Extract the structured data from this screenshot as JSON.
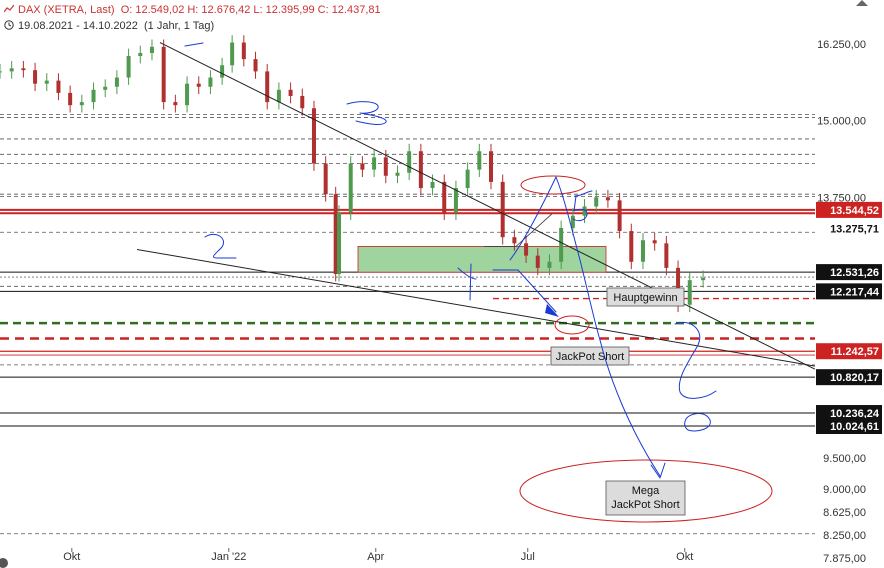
{
  "header": {
    "instrument": "DAX (XETRA, Last)",
    "ohlc": "O: 12.549,02  H: 12.676,42  L: 12.395,99  C: 12.437,81",
    "range": "19.08.2021 - 14.10.2022",
    "period": "(1 Jahr, 1 Tag)"
  },
  "colors": {
    "candle": "#4f9a4f",
    "red_line": "#cc2222",
    "dashed_red": "#cc2222",
    "dashed_green": "#2e6e1e",
    "grid_dash": "#555555",
    "green_box": "#9fd49f",
    "blue_ink": "#1a3ad6",
    "trendline": "#222222",
    "red_label_bg": "#cc2222"
  },
  "chart_data": {
    "type": "candlestick",
    "x_ticks": [
      "Okt",
      "Jan '22",
      "Apr",
      "Jul",
      "Okt"
    ],
    "y_ticks": [
      "16.250,00",
      "15.000,00",
      "13.750,00",
      "9.500,00",
      "9.000,00",
      "8.625,00",
      "8.250,00",
      "7.875,00"
    ],
    "ylim": [
      7875,
      16800
    ],
    "price_labels": [
      {
        "text": "13.544,52",
        "value": 13544.52,
        "style": "red"
      },
      {
        "text": "13.275,71",
        "value": 13275.71,
        "style": "plain"
      },
      {
        "text": "12.531,26",
        "value": 12531.26,
        "style": "dark"
      },
      {
        "text": "12.217,44",
        "value": 12217.44,
        "style": "dark"
      },
      {
        "text": "11.242,57",
        "value": 11242.57,
        "style": "red"
      },
      {
        "text": "10.820,17",
        "value": 10820.17,
        "style": "dark"
      },
      {
        "text": "10.236,24",
        "value": 10236.24,
        "style": "dark"
      },
      {
        "text": "10.024,61",
        "value": 10024.61,
        "style": "dark"
      }
    ],
    "annotations": [
      "Hauptgewinn",
      "JackPot Short",
      "Mega JackPot Short"
    ],
    "handwritten": [
      "1",
      "2",
      "3",
      "4",
      "5"
    ],
    "candles": [
      {
        "date": "2021-08-19",
        "close": 15800
      },
      {
        "date": "2021-08-26",
        "close": 15850
      },
      {
        "date": "2021-09-02",
        "close": 15820
      },
      {
        "date": "2021-09-09",
        "close": 15600
      },
      {
        "date": "2021-09-16",
        "close": 15650
      },
      {
        "date": "2021-09-23",
        "close": 15450
      },
      {
        "date": "2021-09-30",
        "close": 15250
      },
      {
        "date": "2021-10-07",
        "close": 15300
      },
      {
        "date": "2021-10-14",
        "close": 15500
      },
      {
        "date": "2021-10-21",
        "close": 15550
      },
      {
        "date": "2021-10-28",
        "close": 15700
      },
      {
        "date": "2021-11-04",
        "close": 16050
      },
      {
        "date": "2021-11-11",
        "close": 16100
      },
      {
        "date": "2021-11-18",
        "close": 16200
      },
      {
        "date": "2021-11-25",
        "close": 15300
      },
      {
        "date": "2021-12-02",
        "close": 15250
      },
      {
        "date": "2021-12-09",
        "close": 15600
      },
      {
        "date": "2021-12-16",
        "close": 15550
      },
      {
        "date": "2021-12-23",
        "close": 15700
      },
      {
        "date": "2021-12-30",
        "close": 15900
      },
      {
        "date": "2022-01-05",
        "close": 16270
      },
      {
        "date": "2022-01-12",
        "close": 16000
      },
      {
        "date": "2022-01-19",
        "close": 15800
      },
      {
        "date": "2022-01-26",
        "close": 15300
      },
      {
        "date": "2022-02-02",
        "close": 15500
      },
      {
        "date": "2022-02-09",
        "close": 15400
      },
      {
        "date": "2022-02-16",
        "close": 15200
      },
      {
        "date": "2022-02-23",
        "close": 14300
      },
      {
        "date": "2022-03-02",
        "close": 13800
      },
      {
        "date": "2022-03-08",
        "close": 12500
      },
      {
        "date": "2022-03-10",
        "close": 13500
      },
      {
        "date": "2022-03-17",
        "close": 14300
      },
      {
        "date": "2022-03-24",
        "close": 14200
      },
      {
        "date": "2022-03-31",
        "close": 14400
      },
      {
        "date": "2022-04-07",
        "close": 14100
      },
      {
        "date": "2022-04-14",
        "close": 14150
      },
      {
        "date": "2022-04-21",
        "close": 14500
      },
      {
        "date": "2022-04-28",
        "close": 13900
      },
      {
        "date": "2022-05-05",
        "close": 14000
      },
      {
        "date": "2022-05-12",
        "close": 13500
      },
      {
        "date": "2022-05-19",
        "close": 13900
      },
      {
        "date": "2022-05-26",
        "close": 14200
      },
      {
        "date": "2022-06-02",
        "close": 14500
      },
      {
        "date": "2022-06-09",
        "close": 14000
      },
      {
        "date": "2022-06-16",
        "close": 13100
      },
      {
        "date": "2022-06-23",
        "close": 13000
      },
      {
        "date": "2022-06-30",
        "close": 12800
      },
      {
        "date": "2022-07-07",
        "close": 12600
      },
      {
        "date": "2022-07-14",
        "close": 12700
      },
      {
        "date": "2022-07-21",
        "close": 13250
      },
      {
        "date": "2022-07-28",
        "close": 13450
      },
      {
        "date": "2022-08-04",
        "close": 13600
      },
      {
        "date": "2022-08-11",
        "close": 13750
      },
      {
        "date": "2022-08-18",
        "close": 13700
      },
      {
        "date": "2022-08-25",
        "close": 13200
      },
      {
        "date": "2022-09-01",
        "close": 12700
      },
      {
        "date": "2022-09-08",
        "close": 13050
      },
      {
        "date": "2022-09-15",
        "close": 13000
      },
      {
        "date": "2022-09-22",
        "close": 12600
      },
      {
        "date": "2022-09-29",
        "close": 12000
      },
      {
        "date": "2022-10-06",
        "close": 12400
      },
      {
        "date": "2022-10-14",
        "close": 12437.81
      }
    ]
  }
}
